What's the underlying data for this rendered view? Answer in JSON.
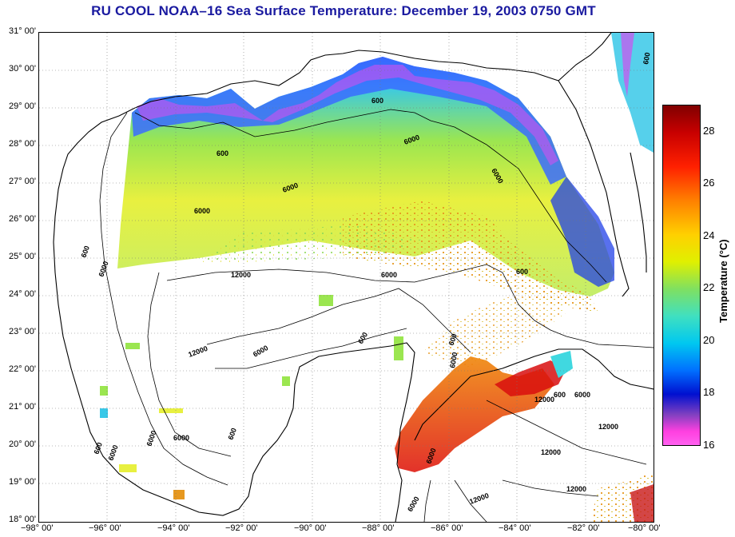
{
  "title": "RU COOL  NOAA–16  Sea Surface Temperature:  December 19, 2003 0750 GMT",
  "y_ticks": [
    "31° 00'",
    "30° 00'",
    "29° 00'",
    "28° 00'",
    "27° 00'",
    "26° 00'",
    "25° 00'",
    "24° 00'",
    "23° 00'",
    "22° 00'",
    "21° 00'",
    "20° 00'",
    "19° 00'",
    "18° 00'"
  ],
  "x_ticks": [
    "−98° 00'",
    "−96° 00'",
    "−94° 00'",
    "−92° 00'",
    "−90° 00'",
    "−88° 00'",
    "−86° 00'",
    "−84° 00'",
    "−82° 00'",
    "−80° 00'"
  ],
  "colorbar": {
    "label": "Temperature (°C)",
    "ticks": [
      "28",
      "26",
      "24",
      "22",
      "20",
      "18",
      "16"
    ],
    "range": [
      16,
      29
    ]
  },
  "contour_labels": [
    "600",
    "6000",
    "600",
    "6000",
    "6000",
    "6000",
    "600",
    "6000",
    "12000",
    "6000",
    "600",
    "6000",
    "12000",
    "6000",
    "600",
    "6000",
    "600",
    "6000",
    "600",
    "12000",
    "600",
    "600",
    "6000",
    "12000",
    "12000",
    "12000",
    "6000",
    "12000",
    "600",
    "6000",
    "6000"
  ]
}
